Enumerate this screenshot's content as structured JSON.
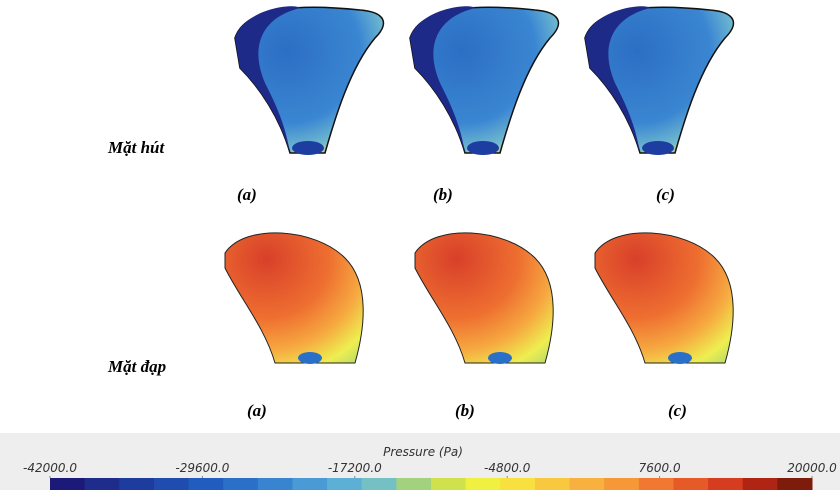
{
  "rows": [
    {
      "label": "Mặt hút",
      "panels": [
        "(a)",
        "(b)",
        "(c)"
      ]
    },
    {
      "label": "Mặt đạp",
      "panels": [
        "(a)",
        "(b)",
        "(c)"
      ]
    }
  ],
  "colorbar": {
    "title": "Pressure (Pa)",
    "lim": [
      -42000,
      20000
    ],
    "ticks": [
      {
        "value": -42000,
        "label": "-42000.0"
      },
      {
        "value": -29600,
        "label": "-29600.0"
      },
      {
        "value": -17200,
        "label": "-17200.0"
      },
      {
        "value": -4800,
        "label": "-4800.0"
      },
      {
        "value": 7600,
        "label": "7600.0"
      },
      {
        "value": 20000,
        "label": "20000.0"
      }
    ],
    "colors": [
      "#1b1a78",
      "#1e2c8c",
      "#1d3c9e",
      "#1f4cae",
      "#215dbe",
      "#2a6fc8",
      "#3984d0",
      "#4a9ad6",
      "#5cb0d6",
      "#74c0c4",
      "#a2d27e",
      "#cfe24e",
      "#eff040",
      "#f8e03e",
      "#f8c83e",
      "#f8b03e",
      "#f69838",
      "#f07830",
      "#e65a28",
      "#d63c20",
      "#b02414",
      "#7e1c0c"
    ]
  }
}
